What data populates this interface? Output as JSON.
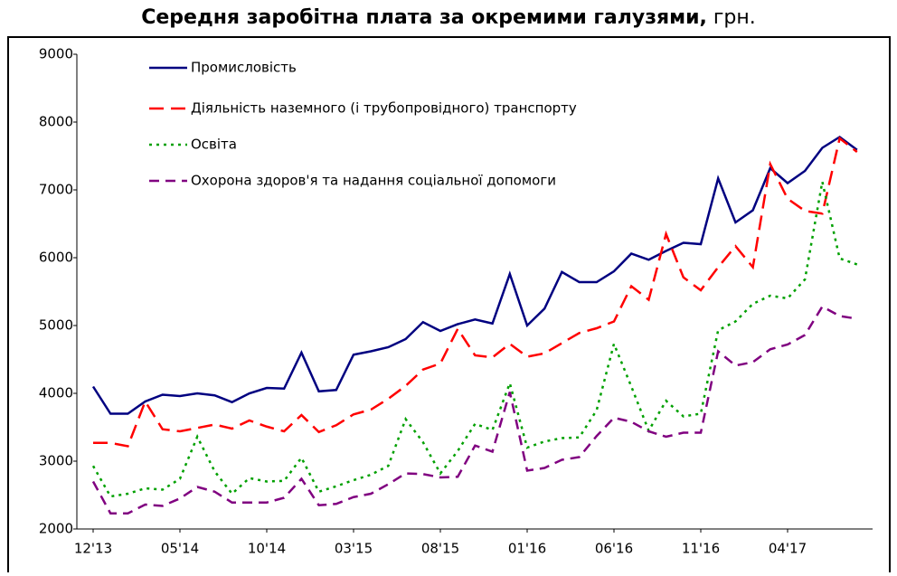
{
  "chart_data": {
    "type": "line",
    "title": "Середня заробітна плата за окремими галузями,",
    "title_unit": "грн.",
    "categories": [
      "12'13",
      null,
      null,
      null,
      null,
      "05'14",
      null,
      null,
      null,
      null,
      "10'14",
      null,
      null,
      null,
      null,
      "03'15",
      null,
      null,
      null,
      null,
      "08'15",
      null,
      null,
      null,
      null,
      "01'16",
      null,
      null,
      null,
      null,
      "06'16",
      null,
      null,
      null,
      null,
      "11'16",
      null,
      null,
      null,
      null,
      "04'17",
      null,
      null,
      null,
      null
    ],
    "series": [
      {
        "name": "Промисловість",
        "color": "#000080",
        "dash": "solid",
        "values": [
          4100,
          3700,
          3700,
          3880,
          3980,
          3960,
          4000,
          3970,
          3870,
          4000,
          4080,
          4070,
          4600,
          4030,
          4050,
          4570,
          4620,
          4680,
          4800,
          5050,
          4920,
          5020,
          5090,
          5030,
          5760,
          5000,
          5250,
          5790,
          5640,
          5640,
          5800,
          6060,
          5970,
          6100,
          6220,
          6200,
          7170,
          6520,
          6700,
          7320,
          7100,
          7280,
          7620,
          7780,
          7590
        ]
      },
      {
        "name": "Діяльність наземного (і трубопровідного) транспорту",
        "color": "#ff0000",
        "dash": "dashed",
        "values": [
          3270,
          3270,
          3220,
          3880,
          3470,
          3440,
          3490,
          3540,
          3480,
          3600,
          3510,
          3440,
          3680,
          3430,
          3530,
          3690,
          3760,
          3920,
          4110,
          4350,
          4440,
          4950,
          4560,
          4530,
          4730,
          4540,
          4590,
          4740,
          4890,
          4960,
          5060,
          5580,
          5380,
          6350,
          5710,
          5520,
          5860,
          6170,
          5860,
          7380,
          6870,
          6690,
          6650,
          7760,
          7560
        ]
      },
      {
        "name": "Освіта",
        "color": "#00a000",
        "dash": "dotted",
        "values": [
          2930,
          2480,
          2520,
          2600,
          2580,
          2740,
          3360,
          2850,
          2520,
          2750,
          2700,
          2710,
          3050,
          2550,
          2630,
          2720,
          2800,
          2930,
          3620,
          3280,
          2820,
          3150,
          3550,
          3460,
          4150,
          3200,
          3290,
          3340,
          3350,
          3750,
          4730,
          4100,
          3450,
          3890,
          3660,
          3700,
          4930,
          5060,
          5320,
          5440,
          5400,
          5680,
          7120,
          5990,
          5900
        ]
      },
      {
        "name": "Охорона здоров'я та надання соціальної допомоги",
        "color": "#800080",
        "dash": "dashdot",
        "values": [
          2700,
          2230,
          2230,
          2360,
          2340,
          2450,
          2620,
          2550,
          2390,
          2390,
          2390,
          2460,
          2740,
          2350,
          2370,
          2470,
          2520,
          2660,
          2820,
          2810,
          2760,
          2770,
          3230,
          3140,
          4020,
          2860,
          2900,
          3020,
          3060,
          3370,
          3640,
          3580,
          3440,
          3360,
          3420,
          3420,
          4620,
          4410,
          4460,
          4650,
          4720,
          4860,
          5280,
          5140,
          5100
        ]
      }
    ],
    "ylim": [
      2000,
      9000
    ],
    "yticks": [
      2000,
      3000,
      4000,
      5000,
      6000,
      7000,
      8000,
      9000
    ],
    "grid": false,
    "legend": "upper left"
  }
}
